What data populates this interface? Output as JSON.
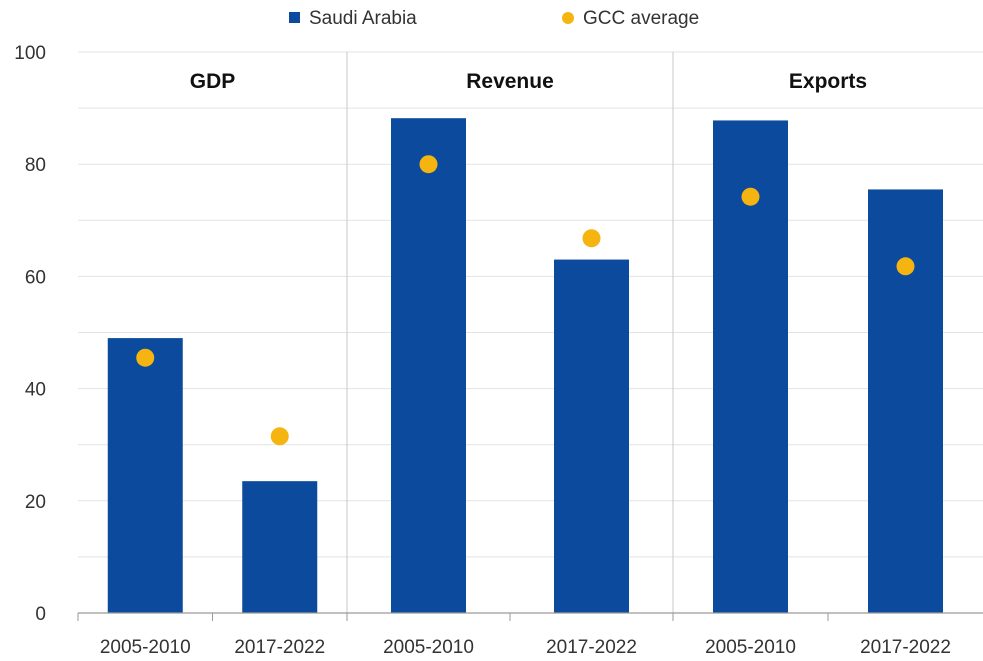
{
  "chart_data": {
    "type": "bar",
    "legend": {
      "placement": "top-center",
      "entries": [
        {
          "label": "Saudi Arabia",
          "marker": "square",
          "color": "#0b4a9c"
        },
        {
          "label": "GCC average",
          "marker": "circle",
          "color": "#f5b40f"
        }
      ]
    },
    "ylim": [
      0,
      100
    ],
    "yticks": [
      0,
      20,
      40,
      60,
      80,
      100
    ],
    "grid": true,
    "panels": [
      {
        "title": "GDP",
        "categories": [
          "2005-2010",
          "2017-2022"
        ],
        "series": [
          {
            "name": "Saudi Arabia",
            "kind": "bar",
            "values": [
              49,
              23.5
            ]
          },
          {
            "name": "GCC average",
            "kind": "dot",
            "values": [
              45.5,
              31.5
            ]
          }
        ]
      },
      {
        "title": "Revenue",
        "categories": [
          "2005-2010",
          "2017-2022"
        ],
        "series": [
          {
            "name": "Saudi Arabia",
            "kind": "bar",
            "values": [
              88.2,
              63
            ]
          },
          {
            "name": "GCC average",
            "kind": "dot",
            "values": [
              80,
              66.8
            ]
          }
        ]
      },
      {
        "title": "Exports",
        "categories": [
          "2005-2010",
          "2017-2022"
        ],
        "series": [
          {
            "name": "Saudi Arabia",
            "kind": "bar",
            "values": [
              87.8,
              75.5
            ]
          },
          {
            "name": "GCC average",
            "kind": "dot",
            "values": [
              74.2,
              61.8
            ]
          }
        ]
      }
    ]
  }
}
